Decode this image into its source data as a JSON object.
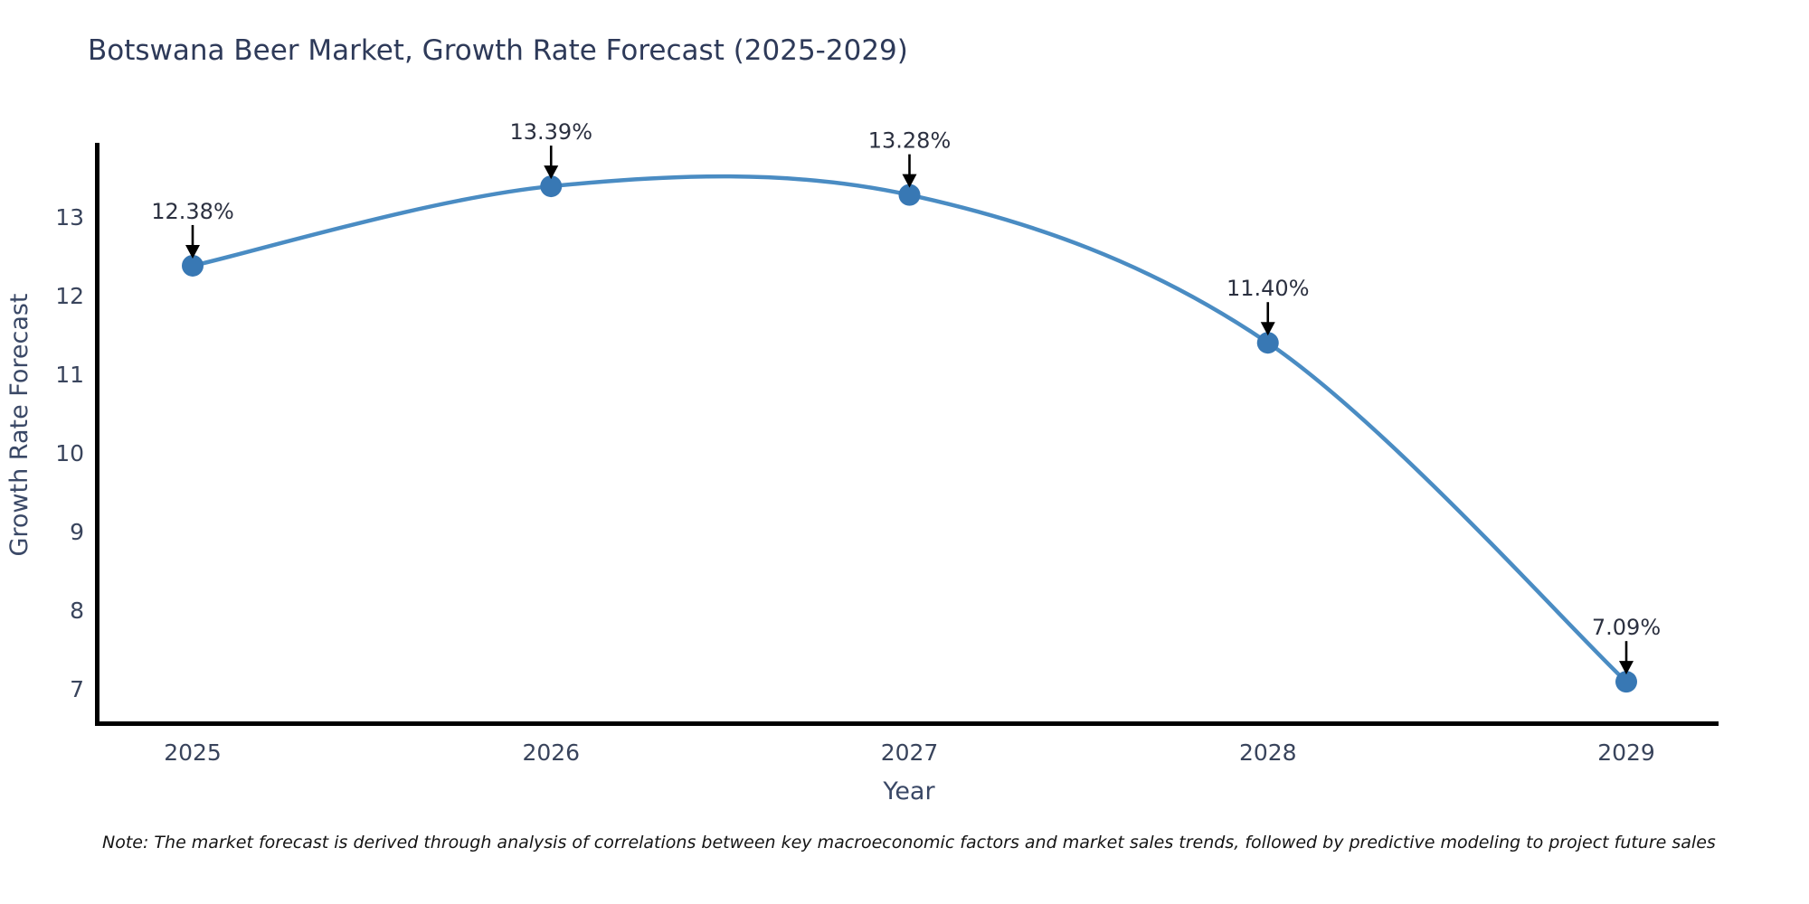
{
  "chart_data": {
    "type": "line",
    "title": "Botswana Beer Market, Growth Rate Forecast (2025-2029)",
    "xlabel": "Year",
    "ylabel": "Growth Rate Forecast",
    "categories": [
      "2025",
      "2026",
      "2027",
      "2028",
      "2029"
    ],
    "values": [
      12.38,
      13.39,
      13.28,
      11.4,
      7.09
    ],
    "point_labels": [
      "12.38%",
      "13.39%",
      "13.28%",
      "11.40%",
      "7.09%"
    ],
    "y_ticks": [
      7,
      8,
      9,
      10,
      11,
      12,
      13
    ],
    "ylim": [
      6.55,
      13.95
    ],
    "grid": false,
    "legend_position": "none",
    "line_color": "#4a8cc3",
    "marker_color": "#3878b4",
    "arrow_color": "#000000",
    "axis_color": "#000000",
    "smoothing": "spline"
  },
  "note": "Note: The market forecast is derived through analysis of correlations between key macroeconomic factors and market sales trends, followed by predictive modeling to project future sales"
}
